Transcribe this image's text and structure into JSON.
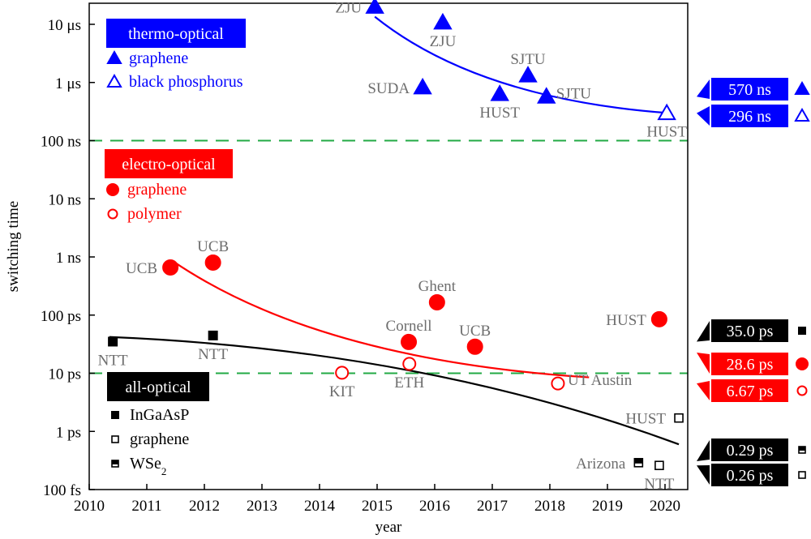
{
  "chart_data": {
    "type": "scatter",
    "title": "",
    "xlabel": "year",
    "ylabel": "switching time",
    "xlim": [
      2010,
      2020.4
    ],
    "ylim_seconds": [
      1e-13,
      2.2e-05
    ],
    "yscale": "log",
    "x_ticks": [
      "2010",
      "2011",
      "2012",
      "2013",
      "2014",
      "2015",
      "2016",
      "2017",
      "2018",
      "2019",
      "2020"
    ],
    "y_ticks": [
      {
        "label": "10 μs",
        "value": 1e-05
      },
      {
        "label": "1 μs",
        "value": 1e-06
      },
      {
        "label": "100 ns",
        "value": 1e-07
      },
      {
        "label": "10 ns",
        "value": 1e-08
      },
      {
        "label": "1 ns",
        "value": 1e-09
      },
      {
        "label": "100 ps",
        "value": 1e-10
      },
      {
        "label": "10 ps",
        "value": 1e-11
      },
      {
        "label": "1 ps",
        "value": 1e-12
      },
      {
        "label": "100 fs",
        "value": 1e-13
      }
    ],
    "threshold_lines": [
      {
        "value": 1e-07,
        "color": "#22aa44",
        "style": "dashed"
      },
      {
        "value": 1e-11,
        "color": "#22aa44",
        "style": "dashed"
      }
    ],
    "groups": [
      {
        "name": "thermo-optical",
        "color": "#0000ff",
        "legend_position": "top-left",
        "series": [
          {
            "name": "graphene",
            "marker": "triangle-filled",
            "points": [
              {
                "label": "ZJU",
                "x": 2014.96,
                "y": 2e-05,
                "label_pos": "left"
              },
              {
                "label": "ZJU",
                "x": 2016.14,
                "y": 1.07e-05,
                "label_pos": "below"
              },
              {
                "label": "SUDA",
                "x": 2015.79,
                "y": 8.2e-07,
                "label_pos": "left"
              },
              {
                "label": "HUST",
                "x": 2017.13,
                "y": 6.3e-07,
                "label_pos": "below"
              },
              {
                "label": "SJTU",
                "x": 2017.62,
                "y": 1.32e-06,
                "label_pos": "above"
              },
              {
                "label": "SJTU",
                "x": 2017.94,
                "y": 5.7e-07,
                "label_pos": "right"
              }
            ]
          },
          {
            "name": "black phosphorus",
            "marker": "triangle-open",
            "points": [
              {
                "label": "HUST",
                "x": 2020.03,
                "y": 2.96e-07,
                "label_pos": "below"
              }
            ]
          }
        ],
        "trend": {
          "from": [
            2014.96,
            1.35e-05
          ],
          "to": [
            2020.03,
            3e-07
          ]
        }
      },
      {
        "name": "electro-optical",
        "color": "#ff0000",
        "legend_position": "middle-left",
        "series": [
          {
            "name": "graphene",
            "marker": "circle-filled",
            "points": [
              {
                "label": "UCB",
                "x": 2011.41,
                "y": 6.6e-10,
                "label_pos": "left"
              },
              {
                "label": "UCB",
                "x": 2012.15,
                "y": 8e-10,
                "label_pos": "above"
              },
              {
                "label": "Ghent",
                "x": 2016.04,
                "y": 1.66e-10,
                "label_pos": "above"
              },
              {
                "label": "Cornell",
                "x": 2015.55,
                "y": 3.45e-11,
                "label_pos": "above"
              },
              {
                "label": "UCB",
                "x": 2016.7,
                "y": 2.86e-11,
                "label_pos": "above"
              },
              {
                "label": "HUST",
                "x": 2019.9,
                "y": 8.5e-11,
                "label_pos": "left"
              }
            ]
          },
          {
            "name": "polymer",
            "marker": "circle-open",
            "points": [
              {
                "label": "KIT",
                "x": 2014.39,
                "y": 1.02e-11,
                "label_pos": "below"
              },
              {
                "label": "ETH",
                "x": 2015.56,
                "y": 1.45e-11,
                "label_pos": "below"
              },
              {
                "label": "UT Austin",
                "x": 2018.14,
                "y": 6.67e-12,
                "label_pos": "right"
              }
            ]
          }
        ],
        "trend": {
          "from": [
            2011.45,
            8.5e-10
          ],
          "to": [
            2018.68,
            8.5e-12
          ]
        }
      },
      {
        "name": "all-optical",
        "color": "#000000",
        "legend_position": "bottom-left",
        "series": [
          {
            "name": "InGaAsP",
            "marker": "square-filled",
            "points": [
              {
                "label": "NTT",
                "x": 2010.41,
                "y": 3.5e-11,
                "label_pos": "below"
              },
              {
                "label": "NTT",
                "x": 2012.15,
                "y": 4.46e-11,
                "label_pos": "below"
              }
            ]
          },
          {
            "name": "graphene",
            "marker": "square-open",
            "points": [
              {
                "label": "HUST",
                "x": 2020.24,
                "y": 1.7e-12,
                "label_pos": "left"
              },
              {
                "label": "NTT",
                "x": 2019.9,
                "y": 2.6e-13,
                "label_pos": "below"
              }
            ]
          },
          {
            "name": "WSe2",
            "marker": "square-half",
            "points": [
              {
                "label": "Arizona",
                "x": 2019.54,
                "y": 2.9e-13,
                "label_pos": "left"
              }
            ]
          }
        ],
        "trend": {
          "from": [
            2010.35,
            4.2e-11
          ],
          "to": [
            2020.24,
            6e-13
          ]
        }
      }
    ],
    "best_values": [
      {
        "label": "570 ns",
        "value": 5.7e-07,
        "color": "#0000ff",
        "marker": "triangle-filled"
      },
      {
        "label": "296 ns",
        "value": 2.96e-07,
        "color": "#0000ff",
        "marker": "triangle-open"
      },
      {
        "label": "35.0 ps",
        "value": 3.5e-11,
        "color": "#000000",
        "marker": "square-filled"
      },
      {
        "label": "28.6 ps",
        "value": 2.86e-11,
        "color": "#ff0000",
        "marker": "circle-filled"
      },
      {
        "label": "6.67 ps",
        "value": 6.67e-12,
        "color": "#ff0000",
        "marker": "circle-open"
      },
      {
        "label": "0.29 ps",
        "value": 2.9e-13,
        "color": "#000000",
        "marker": "square-half"
      },
      {
        "label": "0.26 ps",
        "value": 2.6e-13,
        "color": "#000000",
        "marker": "square-open"
      }
    ],
    "grid": false,
    "legend": "in-plot, per group, left side"
  }
}
